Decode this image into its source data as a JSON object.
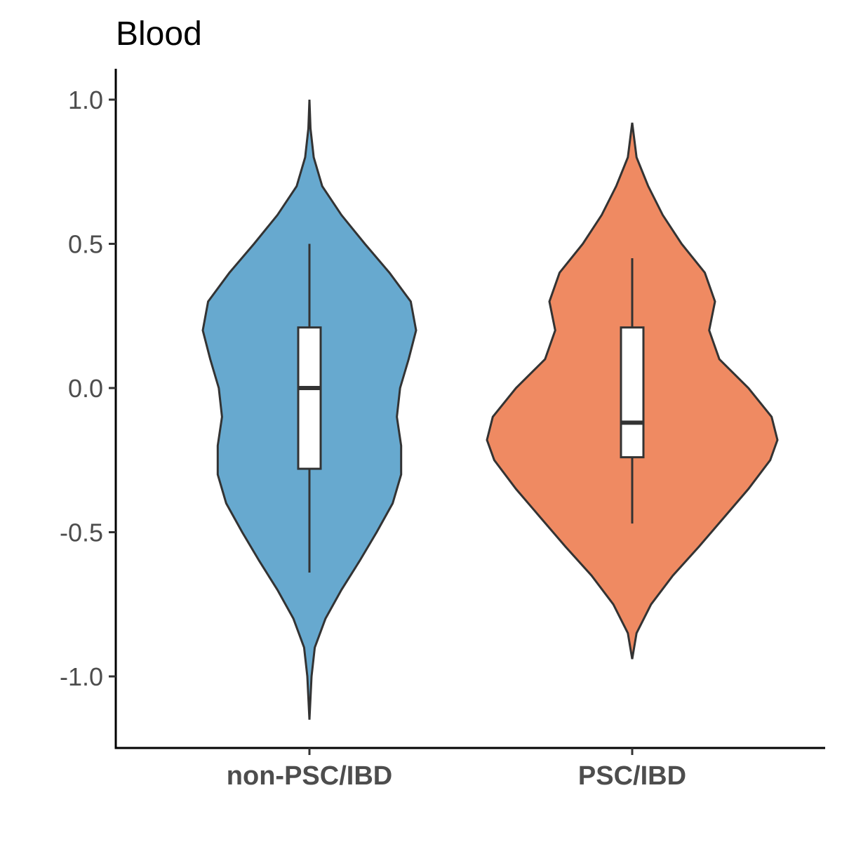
{
  "chart_data": {
    "type": "violin",
    "title": "Blood",
    "xlabel": "",
    "ylabel": "",
    "ylim": [
      -1.2,
      1.1
    ],
    "yticks": [
      1.0,
      0.5,
      0.0,
      -0.5,
      -1.0
    ],
    "ytick_labels": [
      "1.0",
      "0.5",
      "0.0",
      "-0.5",
      "-1.0"
    ],
    "categories": [
      "non-PSC/IBD",
      "PSC/IBD"
    ],
    "series": [
      {
        "category": "non-PSC/IBD",
        "color": "#67a9cf",
        "violin_min": -1.15,
        "violin_max": 1.0,
        "whisker_low": -0.64,
        "q1": -0.28,
        "median": 0.0,
        "q3": 0.21,
        "whisker_high": 0.5,
        "density": [
          [
            -1.15,
            0.0
          ],
          [
            -1.0,
            0.02
          ],
          [
            -0.9,
            0.05
          ],
          [
            -0.8,
            0.15
          ],
          [
            -0.7,
            0.3
          ],
          [
            -0.6,
            0.47
          ],
          [
            -0.5,
            0.63
          ],
          [
            -0.4,
            0.78
          ],
          [
            -0.3,
            0.86
          ],
          [
            -0.2,
            0.86
          ],
          [
            -0.1,
            0.82
          ],
          [
            0.0,
            0.85
          ],
          [
            0.1,
            0.93
          ],
          [
            0.2,
            1.0
          ],
          [
            0.3,
            0.95
          ],
          [
            0.4,
            0.75
          ],
          [
            0.5,
            0.52
          ],
          [
            0.6,
            0.3
          ],
          [
            0.7,
            0.12
          ],
          [
            0.8,
            0.04
          ],
          [
            0.9,
            0.01
          ],
          [
            1.0,
            0.0
          ]
        ]
      },
      {
        "category": "PSC/IBD",
        "color": "#ef8a62",
        "violin_min": -0.94,
        "violin_max": 0.92,
        "whisker_low": -0.47,
        "q1": -0.24,
        "median": -0.12,
        "q3": 0.21,
        "whisker_high": 0.45,
        "density": [
          [
            -0.94,
            0.0
          ],
          [
            -0.85,
            0.03
          ],
          [
            -0.75,
            0.13
          ],
          [
            -0.65,
            0.28
          ],
          [
            -0.55,
            0.46
          ],
          [
            -0.45,
            0.63
          ],
          [
            -0.35,
            0.8
          ],
          [
            -0.25,
            0.95
          ],
          [
            -0.18,
            1.0
          ],
          [
            -0.1,
            0.96
          ],
          [
            0.0,
            0.8
          ],
          [
            0.1,
            0.6
          ],
          [
            0.2,
            0.53
          ],
          [
            0.3,
            0.57
          ],
          [
            0.4,
            0.5
          ],
          [
            0.5,
            0.34
          ],
          [
            0.6,
            0.21
          ],
          [
            0.7,
            0.11
          ],
          [
            0.8,
            0.03
          ],
          [
            0.92,
            0.0
          ]
        ]
      }
    ],
    "legend": "none",
    "grid": false
  }
}
